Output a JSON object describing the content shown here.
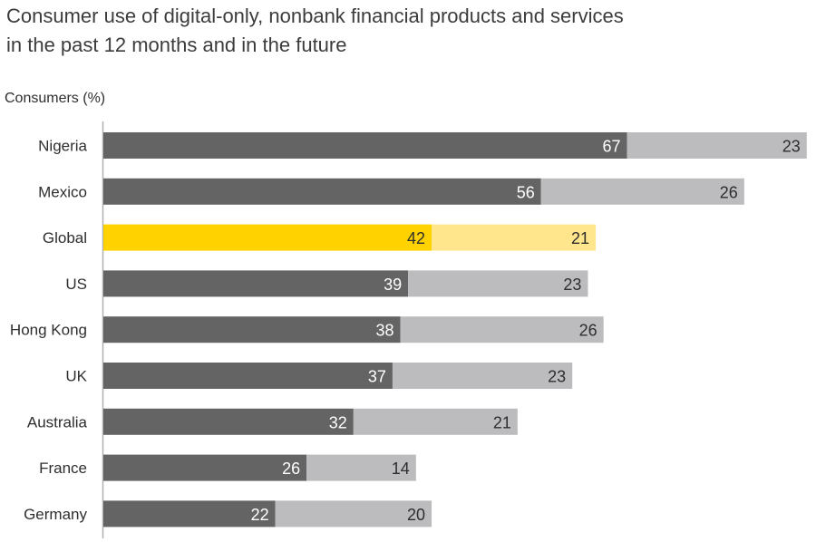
{
  "chart_data": {
    "type": "bar",
    "orientation": "horizontal",
    "stacked": true,
    "title_lines": [
      "Consumer use of digital-only, nonbank financial products and services",
      "in the past 12 months and in the future"
    ],
    "ylabel": "Consumers (%)",
    "categories": [
      "Nigeria",
      "Mexico",
      "Global",
      "US",
      "Hong Kong",
      "UK",
      "Australia",
      "France",
      "Germany"
    ],
    "series": [
      {
        "values": [
          67,
          56,
          42,
          39,
          38,
          37,
          32,
          26,
          22
        ]
      },
      {
        "values": [
          23,
          26,
          21,
          23,
          26,
          23,
          21,
          14,
          20
        ]
      }
    ],
    "highlight_category": "Global",
    "colors": {
      "series1": "#646464",
      "series2": "#bcbcbf",
      "highlight1": "#ffd200",
      "highlight2": "#ffe68c",
      "axis": "#b0b0b0",
      "label_dark": "#ffffff",
      "label_light": "#2e2e2e"
    },
    "xlim": [
      0,
      90
    ],
    "grid": false,
    "legend": "none"
  }
}
